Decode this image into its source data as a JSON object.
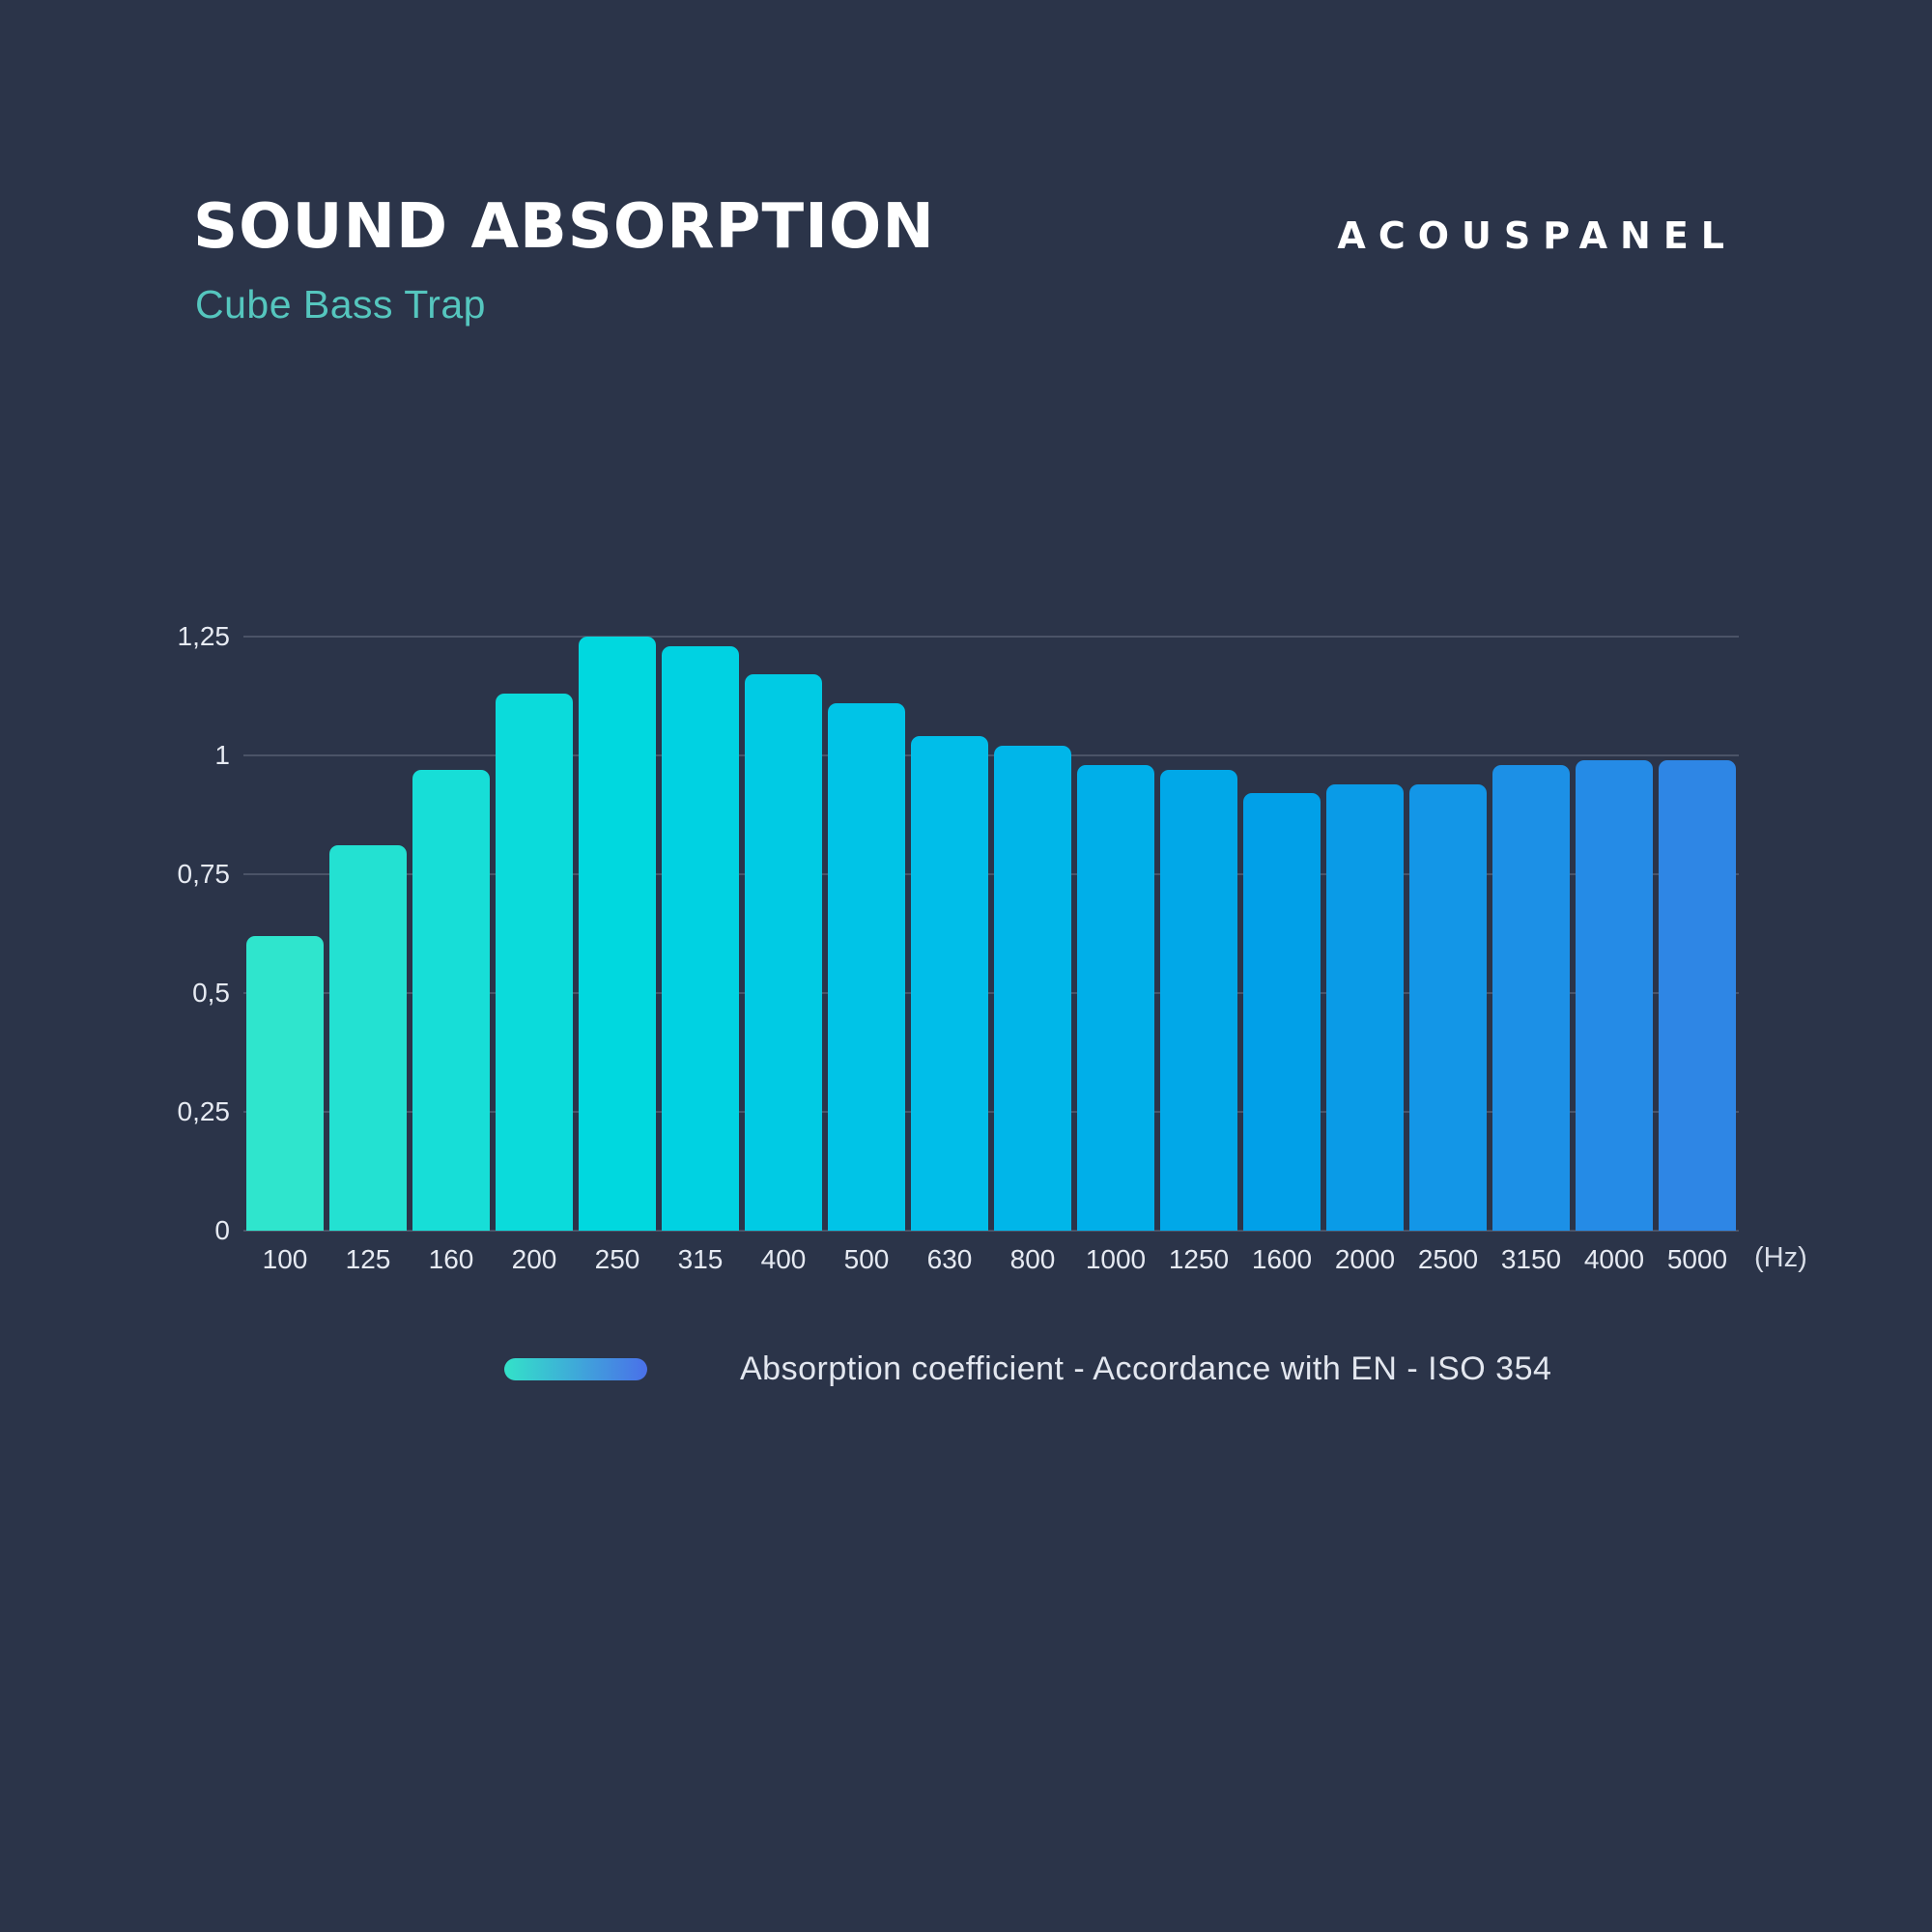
{
  "header": {
    "title": "SOUND ABSORPTION",
    "subtitle": "Cube Bass Trap",
    "brand": "ACOUSPANEL"
  },
  "legend": {
    "label": "Absorption coefficient - Accordance with EN - ISO 354",
    "swatch_gradient_from": "#33E2C9",
    "swatch_gradient_to": "#4A70E9"
  },
  "colors": {
    "background": "#2B3449",
    "title_text": "#FFFFFF",
    "subtitle_text": "#55C6BE",
    "axis_text": "#E6EAF2",
    "gridline": "#47516A"
  },
  "chart_data": {
    "type": "bar",
    "title": "SOUND ABSORPTION",
    "subtitle": "Cube Bass Trap",
    "categories": [
      "100",
      "125",
      "160",
      "200",
      "250",
      "315",
      "400",
      "500",
      "630",
      "800",
      "1000",
      "1250",
      "1600",
      "2000",
      "2500",
      "3150",
      "4000",
      "5000"
    ],
    "values": [
      0.62,
      0.81,
      0.97,
      1.13,
      1.25,
      1.23,
      1.17,
      1.11,
      1.04,
      1.02,
      0.98,
      0.97,
      0.92,
      0.94,
      0.94,
      0.98,
      0.99,
      0.99
    ],
    "bar_colors": [
      "#2FE5CD",
      "#23E1D2",
      "#17DED7",
      "#0BDBDB",
      "#00D8DF",
      "#00D2E2",
      "#00CBE4",
      "#00C4E7",
      "#00BEE9",
      "#00B6E9",
      "#00AFE9",
      "#01A8E8",
      "#01A0E8",
      "#0A9BE7",
      "#1396E7",
      "#1C90E6",
      "#258BE6",
      "#2E86E5"
    ],
    "xlabel": "",
    "ylabel": "",
    "x_unit": "(Hz)",
    "ylim": [
      0,
      1.25
    ],
    "ytick_values": [
      0,
      0.25,
      0.5,
      0.75,
      1,
      1.25
    ],
    "ytick_labels": [
      "0",
      "0,25",
      "0,5",
      "0,75",
      "1",
      "1,25"
    ],
    "grid": true,
    "legend_entries": [
      "Absorption coefficient - Accordance with EN - ISO 354"
    ],
    "legend_position": "bottom"
  }
}
